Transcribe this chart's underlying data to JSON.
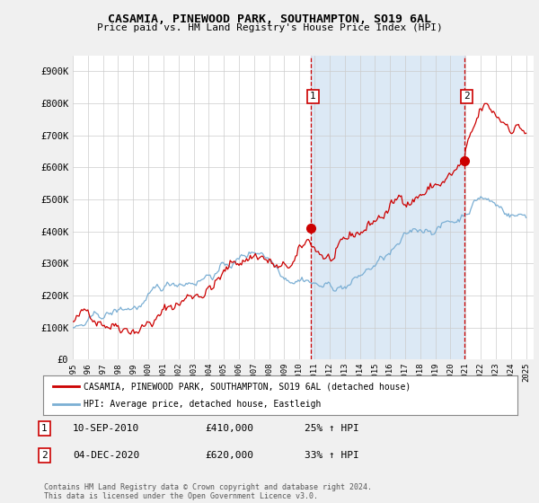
{
  "title": "CASAMIA, PINEWOOD PARK, SOUTHAMPTON, SO19 6AL",
  "subtitle": "Price paid vs. HM Land Registry's House Price Index (HPI)",
  "ylim": [
    0,
    950000
  ],
  "yticks": [
    0,
    100000,
    200000,
    300000,
    400000,
    500000,
    600000,
    700000,
    800000,
    900000
  ],
  "ytick_labels": [
    "£0",
    "£100K",
    "£200K",
    "£300K",
    "£400K",
    "£500K",
    "£600K",
    "£700K",
    "£800K",
    "£900K"
  ],
  "red_line_color": "#cc0000",
  "blue_line_color": "#7bafd4",
  "shade_color": "#dce9f5",
  "dashed_color": "#cc0000",
  "background_color": "#f0f0f0",
  "plot_bg_color": "#ffffff",
  "grid_color": "#cccccc",
  "ann1_x": 2010.75,
  "ann1_y": 410000,
  "ann2_x": 2020.92,
  "ann2_y": 620000,
  "annotation1": {
    "label": "1",
    "date": "10-SEP-2010",
    "price": "£410,000",
    "pct": "25% ↑ HPI"
  },
  "annotation2": {
    "label": "2",
    "date": "04-DEC-2020",
    "price": "£620,000",
    "pct": "33% ↑ HPI"
  },
  "legend_line1": "CASAMIA, PINEWOOD PARK, SOUTHAMPTON, SO19 6AL (detached house)",
  "legend_line2": "HPI: Average price, detached house, Eastleigh",
  "footer": "Contains HM Land Registry data © Crown copyright and database right 2024.\nThis data is licensed under the Open Government Licence v3.0.",
  "xmin": 1995.0,
  "xmax": 2025.5
}
